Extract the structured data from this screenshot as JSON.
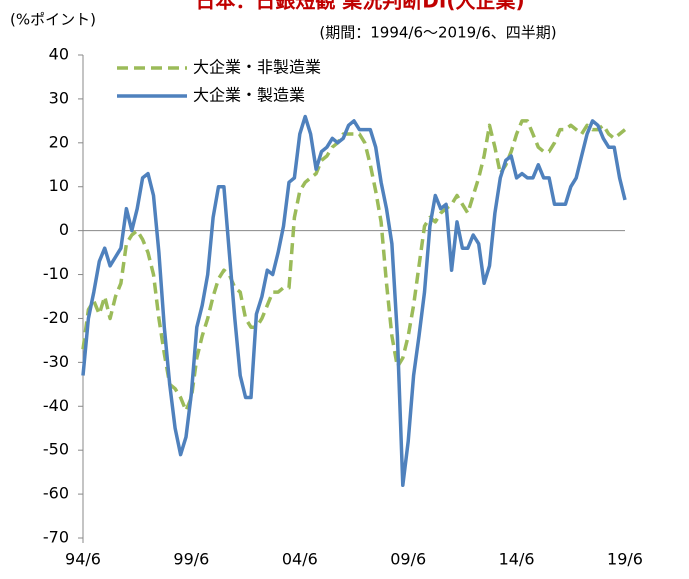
{
  "chart_data": {
    "type": "line",
    "title": "日本：日銀短観 業況判断DI(大企業)",
    "subtitle": "(期間：1994/6～2019/6、四半期)",
    "y_label": "(%ポイント)",
    "categories": [
      "94/6",
      null,
      null,
      null,
      null,
      null,
      null,
      null,
      null,
      null,
      null,
      null,
      null,
      null,
      null,
      null,
      null,
      null,
      null,
      null,
      "99/6",
      null,
      null,
      null,
      null,
      null,
      null,
      null,
      null,
      null,
      null,
      null,
      null,
      null,
      null,
      null,
      null,
      null,
      null,
      null,
      "04/6",
      null,
      null,
      null,
      null,
      null,
      null,
      null,
      null,
      null,
      null,
      null,
      null,
      null,
      null,
      null,
      null,
      null,
      null,
      null,
      "09/6",
      null,
      null,
      null,
      null,
      null,
      null,
      null,
      null,
      null,
      null,
      null,
      null,
      null,
      null,
      null,
      null,
      null,
      null,
      null,
      "14/6",
      null,
      null,
      null,
      null,
      null,
      null,
      null,
      null,
      null,
      null,
      null,
      null,
      null,
      null,
      null,
      null,
      null,
      null,
      null,
      "19/6"
    ],
    "series": [
      {
        "name": "大企業・非製造業",
        "color": "#9bbb59",
        "dash": true,
        "values": [
          -27,
          -18,
          -16,
          -19,
          -15,
          -20,
          -15,
          -12,
          -3,
          -1,
          0,
          -2,
          -5,
          -10,
          -20,
          -28,
          -35,
          -36,
          -38,
          -41,
          -38,
          -29,
          -24,
          -20,
          -15,
          -11,
          -9,
          -10,
          -13,
          -14,
          -20,
          -22,
          -22,
          -20,
          -17,
          -14,
          -14,
          -13,
          -13,
          3,
          9,
          11,
          12,
          13,
          16,
          17,
          19,
          20,
          22,
          22,
          22,
          22,
          20,
          15,
          9,
          2,
          -12,
          -24,
          -31,
          -29,
          -24,
          -17,
          -8,
          1,
          3,
          2,
          4,
          5,
          6,
          8,
          6,
          4,
          8,
          12,
          17,
          24,
          19,
          13,
          15,
          18,
          22,
          25,
          25,
          22,
          19,
          18,
          18,
          20,
          23,
          23,
          24,
          23,
          22,
          24,
          23,
          23,
          24,
          22,
          21,
          22,
          23
        ]
      },
      {
        "name": "大企業・製造業",
        "color": "#4f81bd",
        "dash": false,
        "values": [
          -33,
          -20,
          -14,
          -7,
          -4,
          -8,
          -6,
          -4,
          5,
          0,
          5,
          12,
          13,
          8,
          -5,
          -22,
          -35,
          -45,
          -51,
          -47,
          -37,
          -22,
          -17,
          -10,
          3,
          10,
          10,
          -5,
          -20,
          -33,
          -38,
          -38,
          -19,
          -15,
          -9,
          -10,
          -5,
          1,
          11,
          12,
          22,
          26,
          22,
          14,
          18,
          19,
          21,
          20,
          21,
          24,
          25,
          23,
          23,
          23,
          19,
          11,
          5,
          -3,
          -24,
          -58,
          -48,
          -33,
          -24,
          -14,
          1,
          8,
          5,
          6,
          -9,
          2,
          -4,
          -4,
          -1,
          -3,
          -12,
          -8,
          4,
          12,
          16,
          17,
          12,
          13,
          12,
          12,
          15,
          12,
          12,
          6,
          6,
          6,
          10,
          12,
          17,
          22,
          25,
          24,
          21,
          19,
          19,
          12,
          7
        ]
      }
    ],
    "ylim": [
      -70,
      40
    ],
    "yticks": [
      -70,
      -60,
      -50,
      -40,
      -30,
      -20,
      -10,
      0,
      10,
      20,
      30,
      40
    ],
    "legend": "upper left"
  }
}
